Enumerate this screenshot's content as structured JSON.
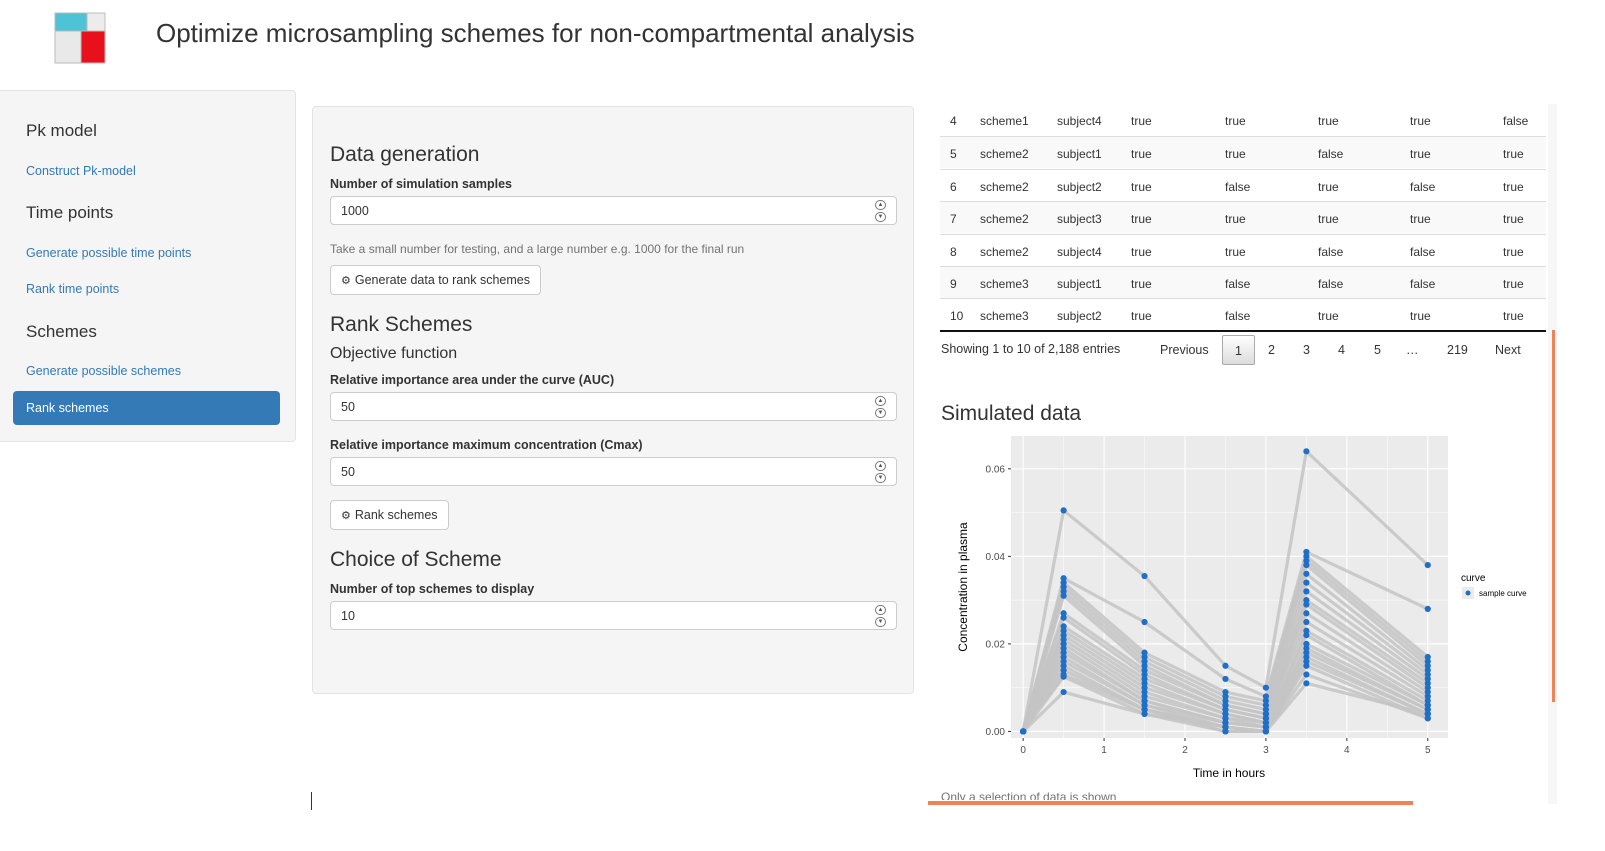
{
  "header": {
    "title": "Optimize microsampling schemes for non-compartmental analysis"
  },
  "sidebar": {
    "sections": [
      {
        "heading": "Pk model",
        "links": [
          "Construct Pk-model"
        ]
      },
      {
        "heading": "Time points",
        "links": [
          "Generate possible time points",
          "Rank time points"
        ]
      },
      {
        "heading": "Schemes",
        "links": [
          "Generate possible schemes"
        ]
      }
    ],
    "active": "Rank schemes"
  },
  "panel": {
    "data_generation": {
      "title": "Data generation",
      "n_samples_label": "Number of simulation samples",
      "n_samples_value": "1000",
      "help": "Take a small number for testing, and a large number e.g. 1000 for the final run",
      "button": "Generate data to rank schemes"
    },
    "rank": {
      "title": "Rank Schemes",
      "subtitle": "Objective function",
      "auc_label": "Relative importance area under the curve (AUC)",
      "auc_value": "50",
      "cmax_label": "Relative importance maximum concentration (Cmax)",
      "cmax_value": "50",
      "button": "Rank schemes"
    },
    "choice": {
      "title": "Choice of Scheme",
      "top_label": "Number of top schemes to display",
      "top_value": "10"
    }
  },
  "table": {
    "rows": [
      [
        "4",
        "scheme1",
        "subject4",
        "true",
        "true",
        "true",
        "true",
        "false"
      ],
      [
        "5",
        "scheme2",
        "subject1",
        "true",
        "true",
        "false",
        "true",
        "true"
      ],
      [
        "6",
        "scheme2",
        "subject2",
        "true",
        "false",
        "true",
        "false",
        "true"
      ],
      [
        "7",
        "scheme2",
        "subject3",
        "true",
        "true",
        "true",
        "true",
        "true"
      ],
      [
        "8",
        "scheme2",
        "subject4",
        "true",
        "true",
        "false",
        "false",
        "true"
      ],
      [
        "9",
        "scheme3",
        "subject1",
        "true",
        "false",
        "false",
        "false",
        "true"
      ],
      [
        "10",
        "scheme3",
        "subject2",
        "true",
        "false",
        "true",
        "true",
        "true"
      ]
    ],
    "info": "Showing 1 to 10 of 2,188 entries",
    "pagination": {
      "previous": "Previous",
      "pages": [
        "1",
        "2",
        "3",
        "4",
        "5",
        "…",
        "219"
      ],
      "next": "Next",
      "current": "1"
    }
  },
  "plot": {
    "title": "Simulated data",
    "xlabel": "Time in hours",
    "ylabel": "Concentration in plasma",
    "legend_title": "curve",
    "legend_entry": "sample curve",
    "x_ticks": [
      "0",
      "1",
      "2",
      "3",
      "4",
      "5"
    ],
    "y_ticks": [
      "0.00",
      "0.02",
      "0.04",
      "0.06"
    ],
    "caption": "Only a selection of data is shown",
    "colors": {
      "point": "#1f6fc9",
      "line": "#c4c4c4",
      "panel": "#ebebeb"
    },
    "chart_data": {
      "type": "scatter",
      "x_times": [
        0,
        0.5,
        1.5,
        2.5,
        3,
        3.5,
        5
      ],
      "xlim": [
        -0.15,
        5.25
      ],
      "ylim": [
        -0.0015,
        0.0675
      ],
      "curves": [
        [
          0,
          0.0505,
          0.0355,
          0.015,
          0.01,
          0.064,
          0.038
        ],
        [
          0,
          0.035,
          0.025,
          0.012,
          0.008,
          0.041,
          0.028
        ],
        [
          0,
          0.034,
          0.018,
          0.009,
          0.007,
          0.04,
          0.017
        ],
        [
          0,
          0.033,
          0.017,
          0.008,
          0.006,
          0.039,
          0.016
        ],
        [
          0,
          0.032,
          0.016,
          0.007,
          0.005,
          0.038,
          0.015
        ],
        [
          0,
          0.031,
          0.015,
          0.006,
          0.004,
          0.036,
          0.014
        ],
        [
          0,
          0.027,
          0.014,
          0.006,
          0.004,
          0.034,
          0.013
        ],
        [
          0,
          0.026,
          0.013,
          0.005,
          0.003,
          0.032,
          0.012
        ],
        [
          0,
          0.024,
          0.012,
          0.005,
          0.003,
          0.03,
          0.011
        ],
        [
          0,
          0.023,
          0.011,
          0.004,
          0.002,
          0.029,
          0.01
        ],
        [
          0,
          0.022,
          0.01,
          0.004,
          0.002,
          0.027,
          0.009
        ],
        [
          0,
          0.021,
          0.009,
          0.003,
          0.002,
          0.025,
          0.008
        ],
        [
          0,
          0.02,
          0.008,
          0.003,
          0.001,
          0.023,
          0.007
        ],
        [
          0,
          0.019,
          0.007,
          0.002,
          0.001,
          0.022,
          0.006
        ],
        [
          0,
          0.018,
          0.007,
          0.002,
          0.001,
          0.02,
          0.006
        ],
        [
          0,
          0.017,
          0.006,
          0.002,
          0.001,
          0.019,
          0.005
        ],
        [
          0,
          0.016,
          0.006,
          0.001,
          0.0,
          0.018,
          0.005
        ],
        [
          0,
          0.015,
          0.005,
          0.001,
          0.0,
          0.017,
          0.004
        ],
        [
          0,
          0.014,
          0.005,
          0.001,
          0.0,
          0.016,
          0.004
        ],
        [
          0,
          0.013,
          0.005,
          0.0,
          0.0,
          0.015,
          0.003
        ],
        [
          0,
          0.0125,
          0.004,
          0.0,
          0.0,
          0.013,
          0.003
        ],
        [
          0,
          0.009,
          0.004,
          0.001,
          0.0,
          0.011,
          0.004
        ]
      ]
    }
  }
}
